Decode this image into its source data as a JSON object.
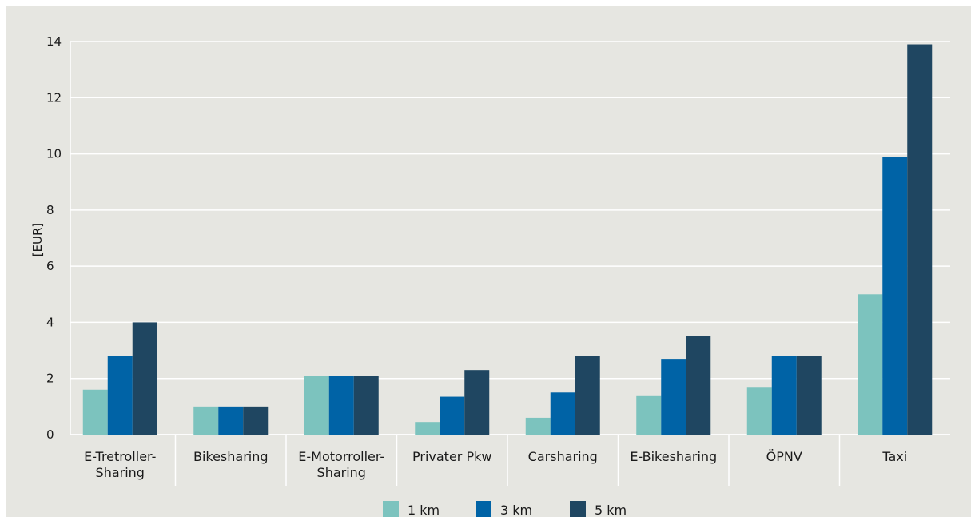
{
  "chart_data": {
    "type": "bar",
    "title": "",
    "xlabel": "",
    "ylabel": "[EUR]",
    "ylim": [
      0,
      14
    ],
    "yticks": [
      0,
      2,
      4,
      6,
      8,
      10,
      12,
      14
    ],
    "grid": true,
    "legend_position": "bottom",
    "categories": [
      [
        "E-Tretroller-",
        "Sharing"
      ],
      [
        "Bikesharing"
      ],
      [
        "E-Motorroller-",
        "Sharing"
      ],
      [
        "Privater Pkw"
      ],
      [
        "Carsharing"
      ],
      [
        "E-Bikesharing"
      ],
      [
        "ÖPNV"
      ],
      [
        "Taxi"
      ]
    ],
    "series": [
      {
        "name": "1 km",
        "color": "#7cc3be",
        "values": [
          1.6,
          1.0,
          2.1,
          0.45,
          0.6,
          1.4,
          1.7,
          5.0
        ]
      },
      {
        "name": "3 km",
        "color": "#0063a6",
        "values": [
          2.8,
          1.0,
          2.1,
          1.35,
          1.5,
          2.7,
          2.8,
          9.9
        ]
      },
      {
        "name": "5 km",
        "color": "#1f4661",
        "values": [
          4.0,
          1.0,
          2.1,
          2.3,
          2.8,
          3.5,
          2.8,
          13.9
        ]
      }
    ]
  },
  "colors": {
    "background": "#e6e6e1",
    "gridline": "#ffffff"
  }
}
